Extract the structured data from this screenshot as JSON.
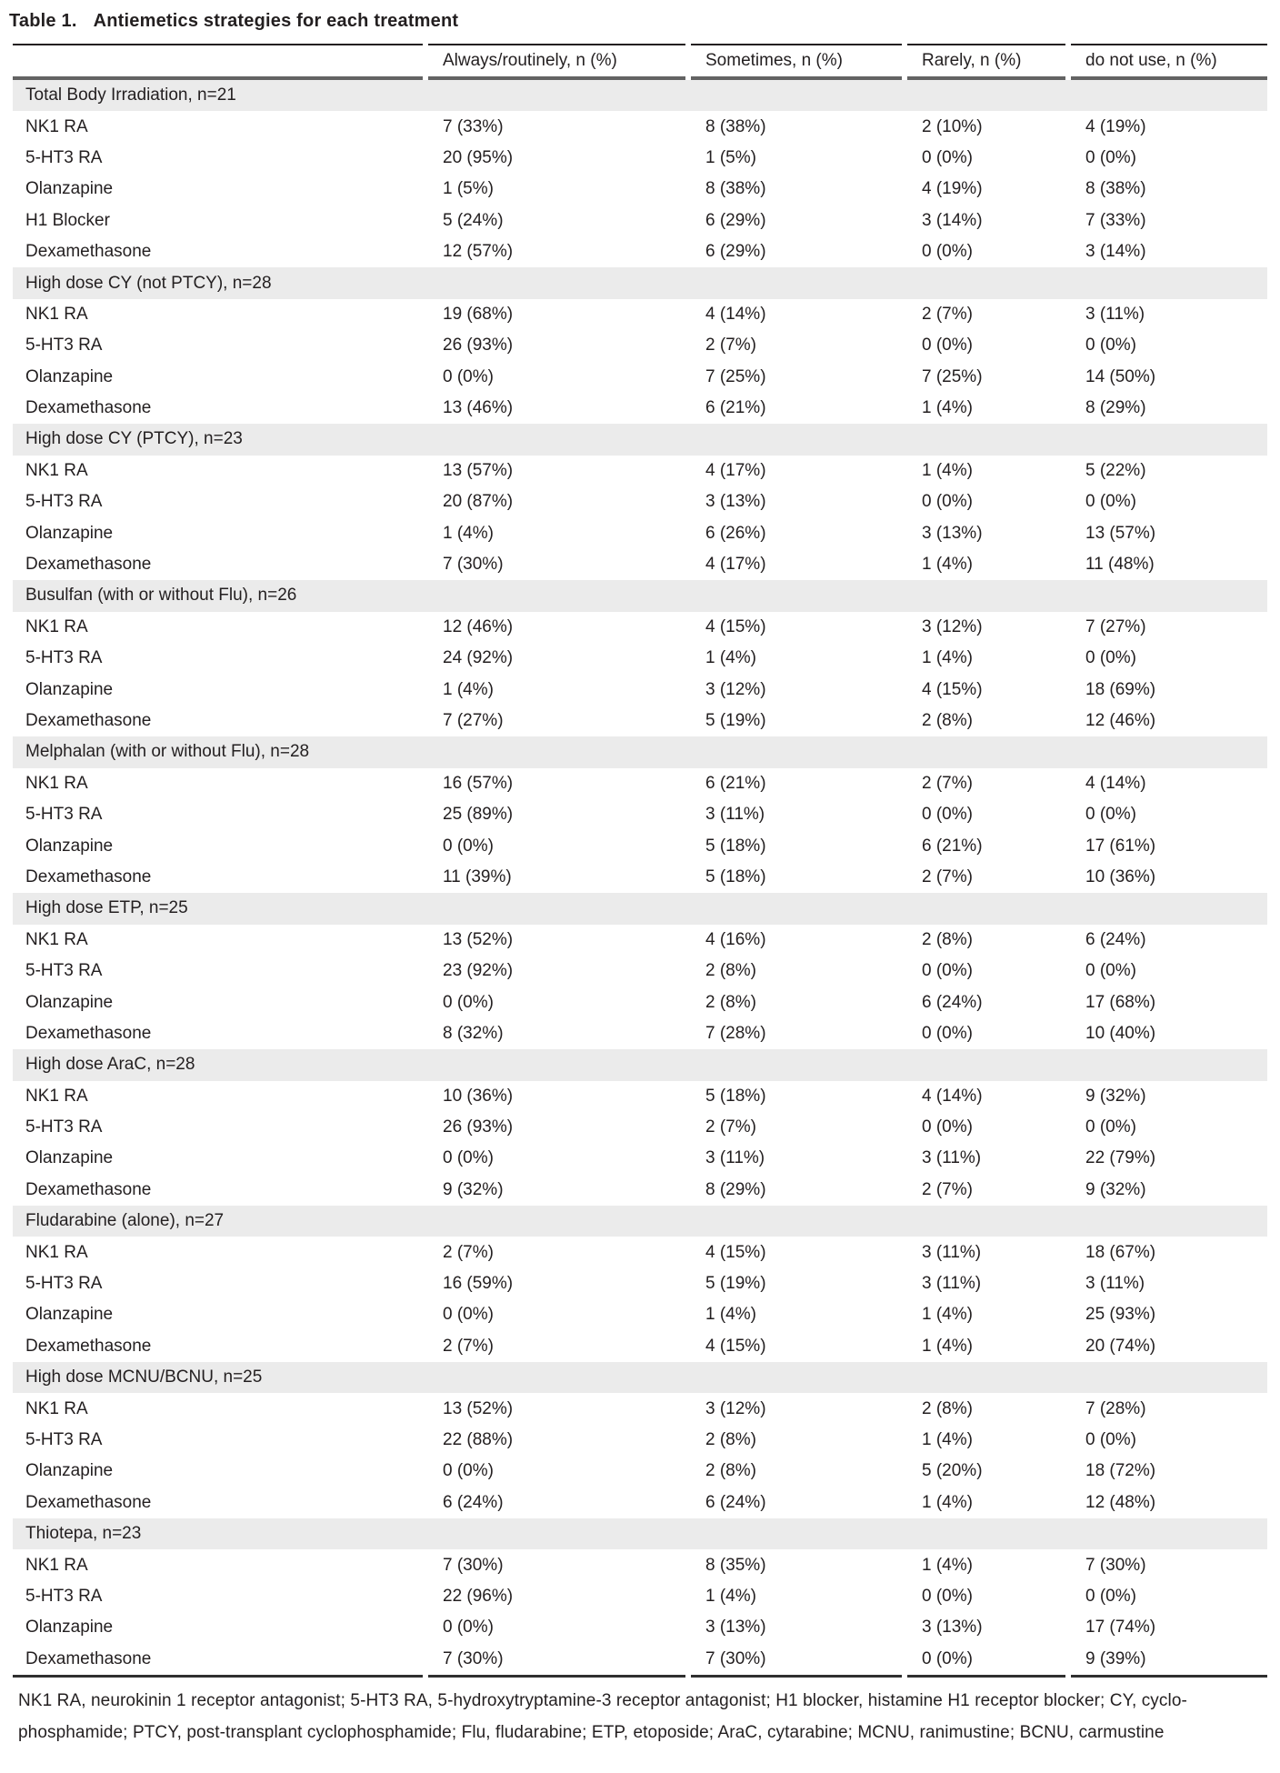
{
  "title": {
    "label": "Table 1.",
    "text": "Antiemetics strategies for each treatment"
  },
  "columns": [
    "Always/routinely, n (%)",
    "Sometimes, n (%)",
    "Rarely, n (%)",
    "do not use, n (%)"
  ],
  "sections": [
    {
      "header": "Total Body Irradiation, n=21",
      "rows": [
        {
          "label": "NK1 RA",
          "values": [
            "7 (33%)",
            "8 (38%)",
            "2 (10%)",
            "4 (19%)"
          ]
        },
        {
          "label": "5-HT3 RA",
          "values": [
            "20 (95%)",
            "1 (5%)",
            "0 (0%)",
            "0 (0%)"
          ]
        },
        {
          "label": "Olanzapine",
          "values": [
            "1 (5%)",
            "8 (38%)",
            "4 (19%)",
            "8 (38%)"
          ]
        },
        {
          "label": "H1 Blocker",
          "values": [
            "5 (24%)",
            "6 (29%)",
            "3 (14%)",
            "7 (33%)"
          ]
        },
        {
          "label": "Dexamethasone",
          "values": [
            "12 (57%)",
            "6 (29%)",
            "0 (0%)",
            "3 (14%)"
          ]
        }
      ]
    },
    {
      "header": "High dose CY (not PTCY), n=28",
      "rows": [
        {
          "label": "NK1 RA",
          "values": [
            "19 (68%)",
            "4 (14%)",
            "2 (7%)",
            "3 (11%)"
          ]
        },
        {
          "label": "5-HT3 RA",
          "values": [
            "26 (93%)",
            "2 (7%)",
            "0 (0%)",
            "0 (0%)"
          ]
        },
        {
          "label": "Olanzapine",
          "values": [
            "0 (0%)",
            "7 (25%)",
            "7 (25%)",
            "14 (50%)"
          ]
        },
        {
          "label": "Dexamethasone",
          "values": [
            "13 (46%)",
            "6 (21%)",
            "1 (4%)",
            "8 (29%)"
          ]
        }
      ]
    },
    {
      "header": "High dose CY (PTCY), n=23",
      "rows": [
        {
          "label": "NK1 RA",
          "values": [
            "13 (57%)",
            "4 (17%)",
            "1 (4%)",
            "5 (22%)"
          ]
        },
        {
          "label": "5-HT3 RA",
          "values": [
            "20 (87%)",
            "3 (13%)",
            "0 (0%)",
            "0 (0%)"
          ]
        },
        {
          "label": "Olanzapine",
          "values": [
            "1 (4%)",
            "6 (26%)",
            "3 (13%)",
            "13 (57%)"
          ]
        },
        {
          "label": "Dexamethasone",
          "values": [
            "7 (30%)",
            "4 (17%)",
            "1 (4%)",
            "11 (48%)"
          ]
        }
      ]
    },
    {
      "header": "Busulfan (with or without Flu), n=26",
      "rows": [
        {
          "label": "NK1 RA",
          "values": [
            "12 (46%)",
            "4 (15%)",
            "3 (12%)",
            "7 (27%)"
          ]
        },
        {
          "label": "5-HT3 RA",
          "values": [
            "24 (92%)",
            "1 (4%)",
            "1 (4%)",
            "0 (0%)"
          ]
        },
        {
          "label": "Olanzapine",
          "values": [
            "1 (4%)",
            "3 (12%)",
            "4 (15%)",
            "18 (69%)"
          ]
        },
        {
          "label": "Dexamethasone",
          "values": [
            "7 (27%)",
            "5 (19%)",
            "2 (8%)",
            "12 (46%)"
          ]
        }
      ]
    },
    {
      "header": "Melphalan (with or without Flu), n=28",
      "rows": [
        {
          "label": "NK1 RA",
          "values": [
            "16 (57%)",
            "6 (21%)",
            "2 (7%)",
            "4 (14%)"
          ]
        },
        {
          "label": "5-HT3 RA",
          "values": [
            "25 (89%)",
            "3 (11%)",
            "0 (0%)",
            "0 (0%)"
          ]
        },
        {
          "label": "Olanzapine",
          "values": [
            "0 (0%)",
            "5 (18%)",
            "6 (21%)",
            "17 (61%)"
          ]
        },
        {
          "label": "Dexamethasone",
          "values": [
            "11 (39%)",
            "5 (18%)",
            "2 (7%)",
            "10 (36%)"
          ]
        }
      ]
    },
    {
      "header": "High dose ETP, n=25",
      "rows": [
        {
          "label": "NK1 RA",
          "values": [
            "13 (52%)",
            "4 (16%)",
            "2 (8%)",
            "6 (24%)"
          ]
        },
        {
          "label": "5-HT3 RA",
          "values": [
            "23 (92%)",
            "2 (8%)",
            "0 (0%)",
            "0 (0%)"
          ]
        },
        {
          "label": "Olanzapine",
          "values": [
            "0 (0%)",
            "2 (8%)",
            "6 (24%)",
            "17 (68%)"
          ]
        },
        {
          "label": "Dexamethasone",
          "values": [
            "8 (32%)",
            "7 (28%)",
            "0 (0%)",
            "10 (40%)"
          ]
        }
      ]
    },
    {
      "header": "High dose AraC, n=28",
      "rows": [
        {
          "label": "NK1 RA",
          "values": [
            "10 (36%)",
            "5 (18%)",
            "4 (14%)",
            "9 (32%)"
          ]
        },
        {
          "label": "5-HT3 RA",
          "values": [
            "26 (93%)",
            "2 (7%)",
            "0 (0%)",
            "0 (0%)"
          ]
        },
        {
          "label": "Olanzapine",
          "values": [
            "0 (0%)",
            "3 (11%)",
            "3 (11%)",
            "22 (79%)"
          ]
        },
        {
          "label": "Dexamethasone",
          "values": [
            "9 (32%)",
            "8 (29%)",
            "2 (7%)",
            "9 (32%)"
          ]
        }
      ]
    },
    {
      "header": "Fludarabine (alone), n=27",
      "rows": [
        {
          "label": "NK1 RA",
          "values": [
            "2 (7%)",
            "4 (15%)",
            "3 (11%)",
            "18 (67%)"
          ]
        },
        {
          "label": "5-HT3 RA",
          "values": [
            "16 (59%)",
            "5 (19%)",
            "3 (11%)",
            "3 (11%)"
          ]
        },
        {
          "label": "Olanzapine",
          "values": [
            "0 (0%)",
            "1 (4%)",
            "1 (4%)",
            "25 (93%)"
          ]
        },
        {
          "label": "Dexamethasone",
          "values": [
            "2 (7%)",
            "4 (15%)",
            "1 (4%)",
            "20 (74%)"
          ]
        }
      ]
    },
    {
      "header": "High dose MCNU/BCNU, n=25",
      "rows": [
        {
          "label": "NK1 RA",
          "values": [
            "13 (52%)",
            "3 (12%)",
            "2 (8%)",
            "7 (28%)"
          ]
        },
        {
          "label": "5-HT3 RA",
          "values": [
            "22 (88%)",
            "2 (8%)",
            "1 (4%)",
            "0 (0%)"
          ]
        },
        {
          "label": "Olanzapine",
          "values": [
            "0 (0%)",
            "2 (8%)",
            "5 (20%)",
            "18 (72%)"
          ]
        },
        {
          "label": "Dexamethasone",
          "values": [
            "6 (24%)",
            "6 (24%)",
            "1 (4%)",
            "12 (48%)"
          ]
        }
      ]
    },
    {
      "header": "Thiotepa, n=23",
      "rows": [
        {
          "label": "NK1 RA",
          "values": [
            "7 (30%)",
            "8 (35%)",
            "1 (4%)",
            "7 (30%)"
          ]
        },
        {
          "label": "5-HT3 RA",
          "values": [
            "22 (96%)",
            "1 (4%)",
            "0 (0%)",
            "0 (0%)"
          ]
        },
        {
          "label": "Olanzapine",
          "values": [
            "0 (0%)",
            "3 (13%)",
            "3 (13%)",
            "17 (74%)"
          ]
        },
        {
          "label": "Dexamethasone",
          "values": [
            "7 (30%)",
            "7 (30%)",
            "0 (0%)",
            "9 (39%)"
          ]
        }
      ]
    }
  ],
  "footnote": {
    "line1": "NK1 RA, neurokinin 1 receptor antagonist; 5-HT3 RA, 5-hydroxytryptamine-3 receptor antagonist; H1 blocker, histamine H1 receptor blocker; CY, cyclo-",
    "line2": "phosphamide; PTCY, post-transplant cyclophosphamide; Flu, fludarabine; ETP, etoposide; AraC, cytarabine; MCNU, ranimustine; BCNU, carmustine"
  }
}
